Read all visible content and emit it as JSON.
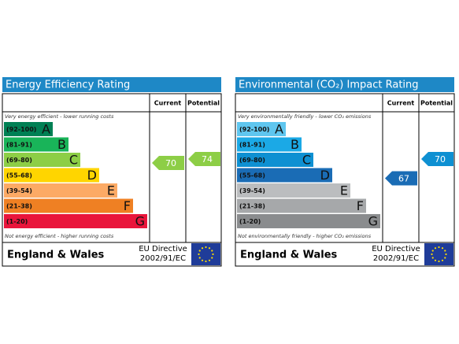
{
  "panels": [
    {
      "title": "Energy Efficiency Rating",
      "columns": [
        "Current",
        "Potential"
      ],
      "top_note": "Very energy efficient - lower running costs",
      "bottom_note": "Not energy efficient - higher running costs",
      "bands": [
        {
          "range": "(92-100)",
          "letter": "A",
          "color": "#008054"
        },
        {
          "range": "(81-91)",
          "letter": "B",
          "color": "#19b459"
        },
        {
          "range": "(69-80)",
          "letter": "C",
          "color": "#8dce46"
        },
        {
          "range": "(55-68)",
          "letter": "D",
          "color": "#ffd500"
        },
        {
          "range": "(39-54)",
          "letter": "E",
          "color": "#fcaa65"
        },
        {
          "range": "(21-38)",
          "letter": "F",
          "color": "#ef8023"
        },
        {
          "range": "(1-20)",
          "letter": "G",
          "color": "#e9153b"
        }
      ],
      "current": 70,
      "potential": 74,
      "region": "England & Wales",
      "directive": [
        "EU Directive",
        "2002/91/EC"
      ]
    },
    {
      "title": "Environmental (CO₂) Impact Rating",
      "columns": [
        "Current",
        "Potential"
      ],
      "top_note": "Very environmentally friendly - lower CO₂ emissions",
      "bottom_note": "Not environmentally friendly - higher CO₂ emissions",
      "bands": [
        {
          "range": "(92-100)",
          "letter": "A",
          "color": "#5fc6ef"
        },
        {
          "range": "(81-91)",
          "letter": "B",
          "color": "#1ba9e6"
        },
        {
          "range": "(69-80)",
          "letter": "C",
          "color": "#0e90d2"
        },
        {
          "range": "(55-68)",
          "letter": "D",
          "color": "#1a6cb5"
        },
        {
          "range": "(39-54)",
          "letter": "E",
          "color": "#bbbdbf"
        },
        {
          "range": "(21-38)",
          "letter": "F",
          "color": "#a6a8aa"
        },
        {
          "range": "(1-20)",
          "letter": "G",
          "color": "#8a8c8e"
        }
      ],
      "current": 67,
      "potential": 70,
      "region": "England & Wales",
      "directive": [
        "EU Directive",
        "2002/91/EC"
      ]
    }
  ]
}
